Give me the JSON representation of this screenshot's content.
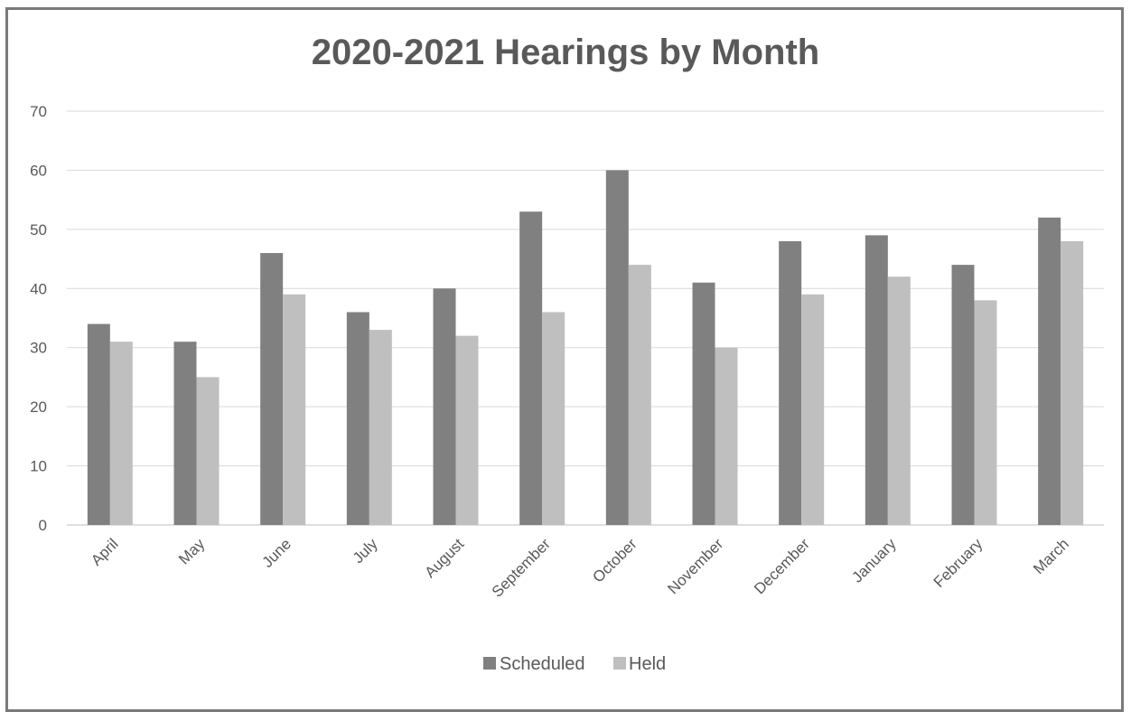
{
  "chart_data": {
    "type": "bar",
    "title": "2020-2021 Hearings by Month",
    "xlabel": "",
    "ylabel": "",
    "categories": [
      "April",
      "May",
      "June",
      "July",
      "August",
      "September",
      "October",
      "November",
      "December",
      "January",
      "February",
      "March"
    ],
    "series": [
      {
        "name": "Scheduled",
        "color": "#808080",
        "values": [
          34,
          31,
          46,
          36,
          40,
          53,
          60,
          41,
          48,
          49,
          44,
          52
        ]
      },
      {
        "name": "Held",
        "color": "#bfbfbf",
        "values": [
          31,
          25,
          39,
          33,
          32,
          36,
          44,
          30,
          39,
          42,
          38,
          48
        ]
      }
    ],
    "ylim": [
      0,
      70
    ],
    "yticks": [
      0,
      10,
      20,
      30,
      40,
      50,
      60,
      70
    ],
    "grid": true,
    "legend": "bottom-center"
  },
  "colors": {
    "frame": "#7a7a7a",
    "grid": "#d9d9d9",
    "text": "#595959"
  }
}
